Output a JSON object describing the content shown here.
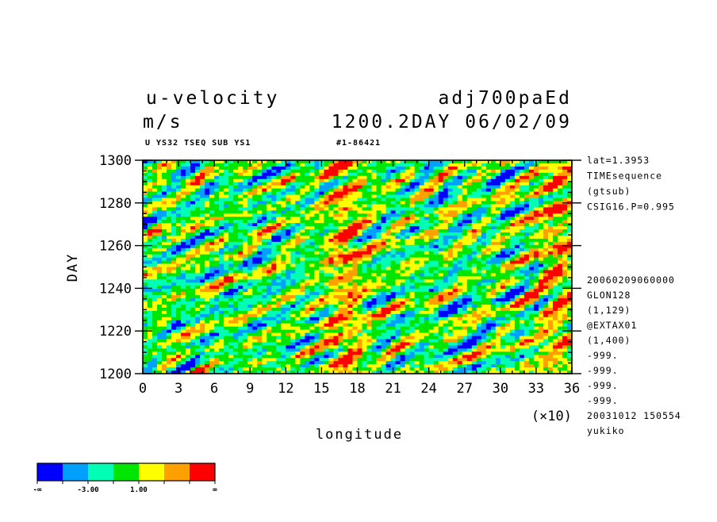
{
  "header": {
    "title_left": "u-velocity",
    "title_right": "adj700paEd",
    "units": "m/s",
    "time_label": "1200.2DAY 06/02/09",
    "subtitle_left": "U YS32 TSEQ SUB YS1",
    "subtitle_right": "#1-86421"
  },
  "side_info": {
    "top": [
      "lat=1.3953",
      "TIMEsequence",
      "(gtsub)",
      "CSIG16.P=0.995"
    ],
    "bottom": [
      "20060209060000",
      "GLON128",
      "(1,129)",
      "@EXTAX01",
      "(1,400)",
      "-999.",
      "-999.",
      "-999.",
      "-999.",
      "20031012 150554",
      "yukiko"
    ]
  },
  "colorbar": {
    "colors": [
      "#0000ff",
      "#00a0ff",
      "#00ffb4",
      "#00e600",
      "#ffff00",
      "#ffa000",
      "#ff0000"
    ],
    "labels": [
      "-∞",
      "-3.00",
      "1.00",
      "∞"
    ]
  },
  "chart_data": {
    "type": "heatmap",
    "xlabel": "longitude",
    "ylabel": "DAY",
    "x_multiplier_label": "(×10)",
    "xlim": [
      0,
      36
    ],
    "ylim": [
      1200,
      1300
    ],
    "x_ticks": [
      "0",
      "3",
      "6",
      "9",
      "12",
      "15",
      "18",
      "21",
      "24",
      "27",
      "30",
      "33",
      "36"
    ],
    "y_ticks": [
      "1200",
      "1220",
      "1240",
      "1260",
      "1280",
      "1300"
    ],
    "grid": false,
    "legend": "colorbar-bottom-left"
  }
}
